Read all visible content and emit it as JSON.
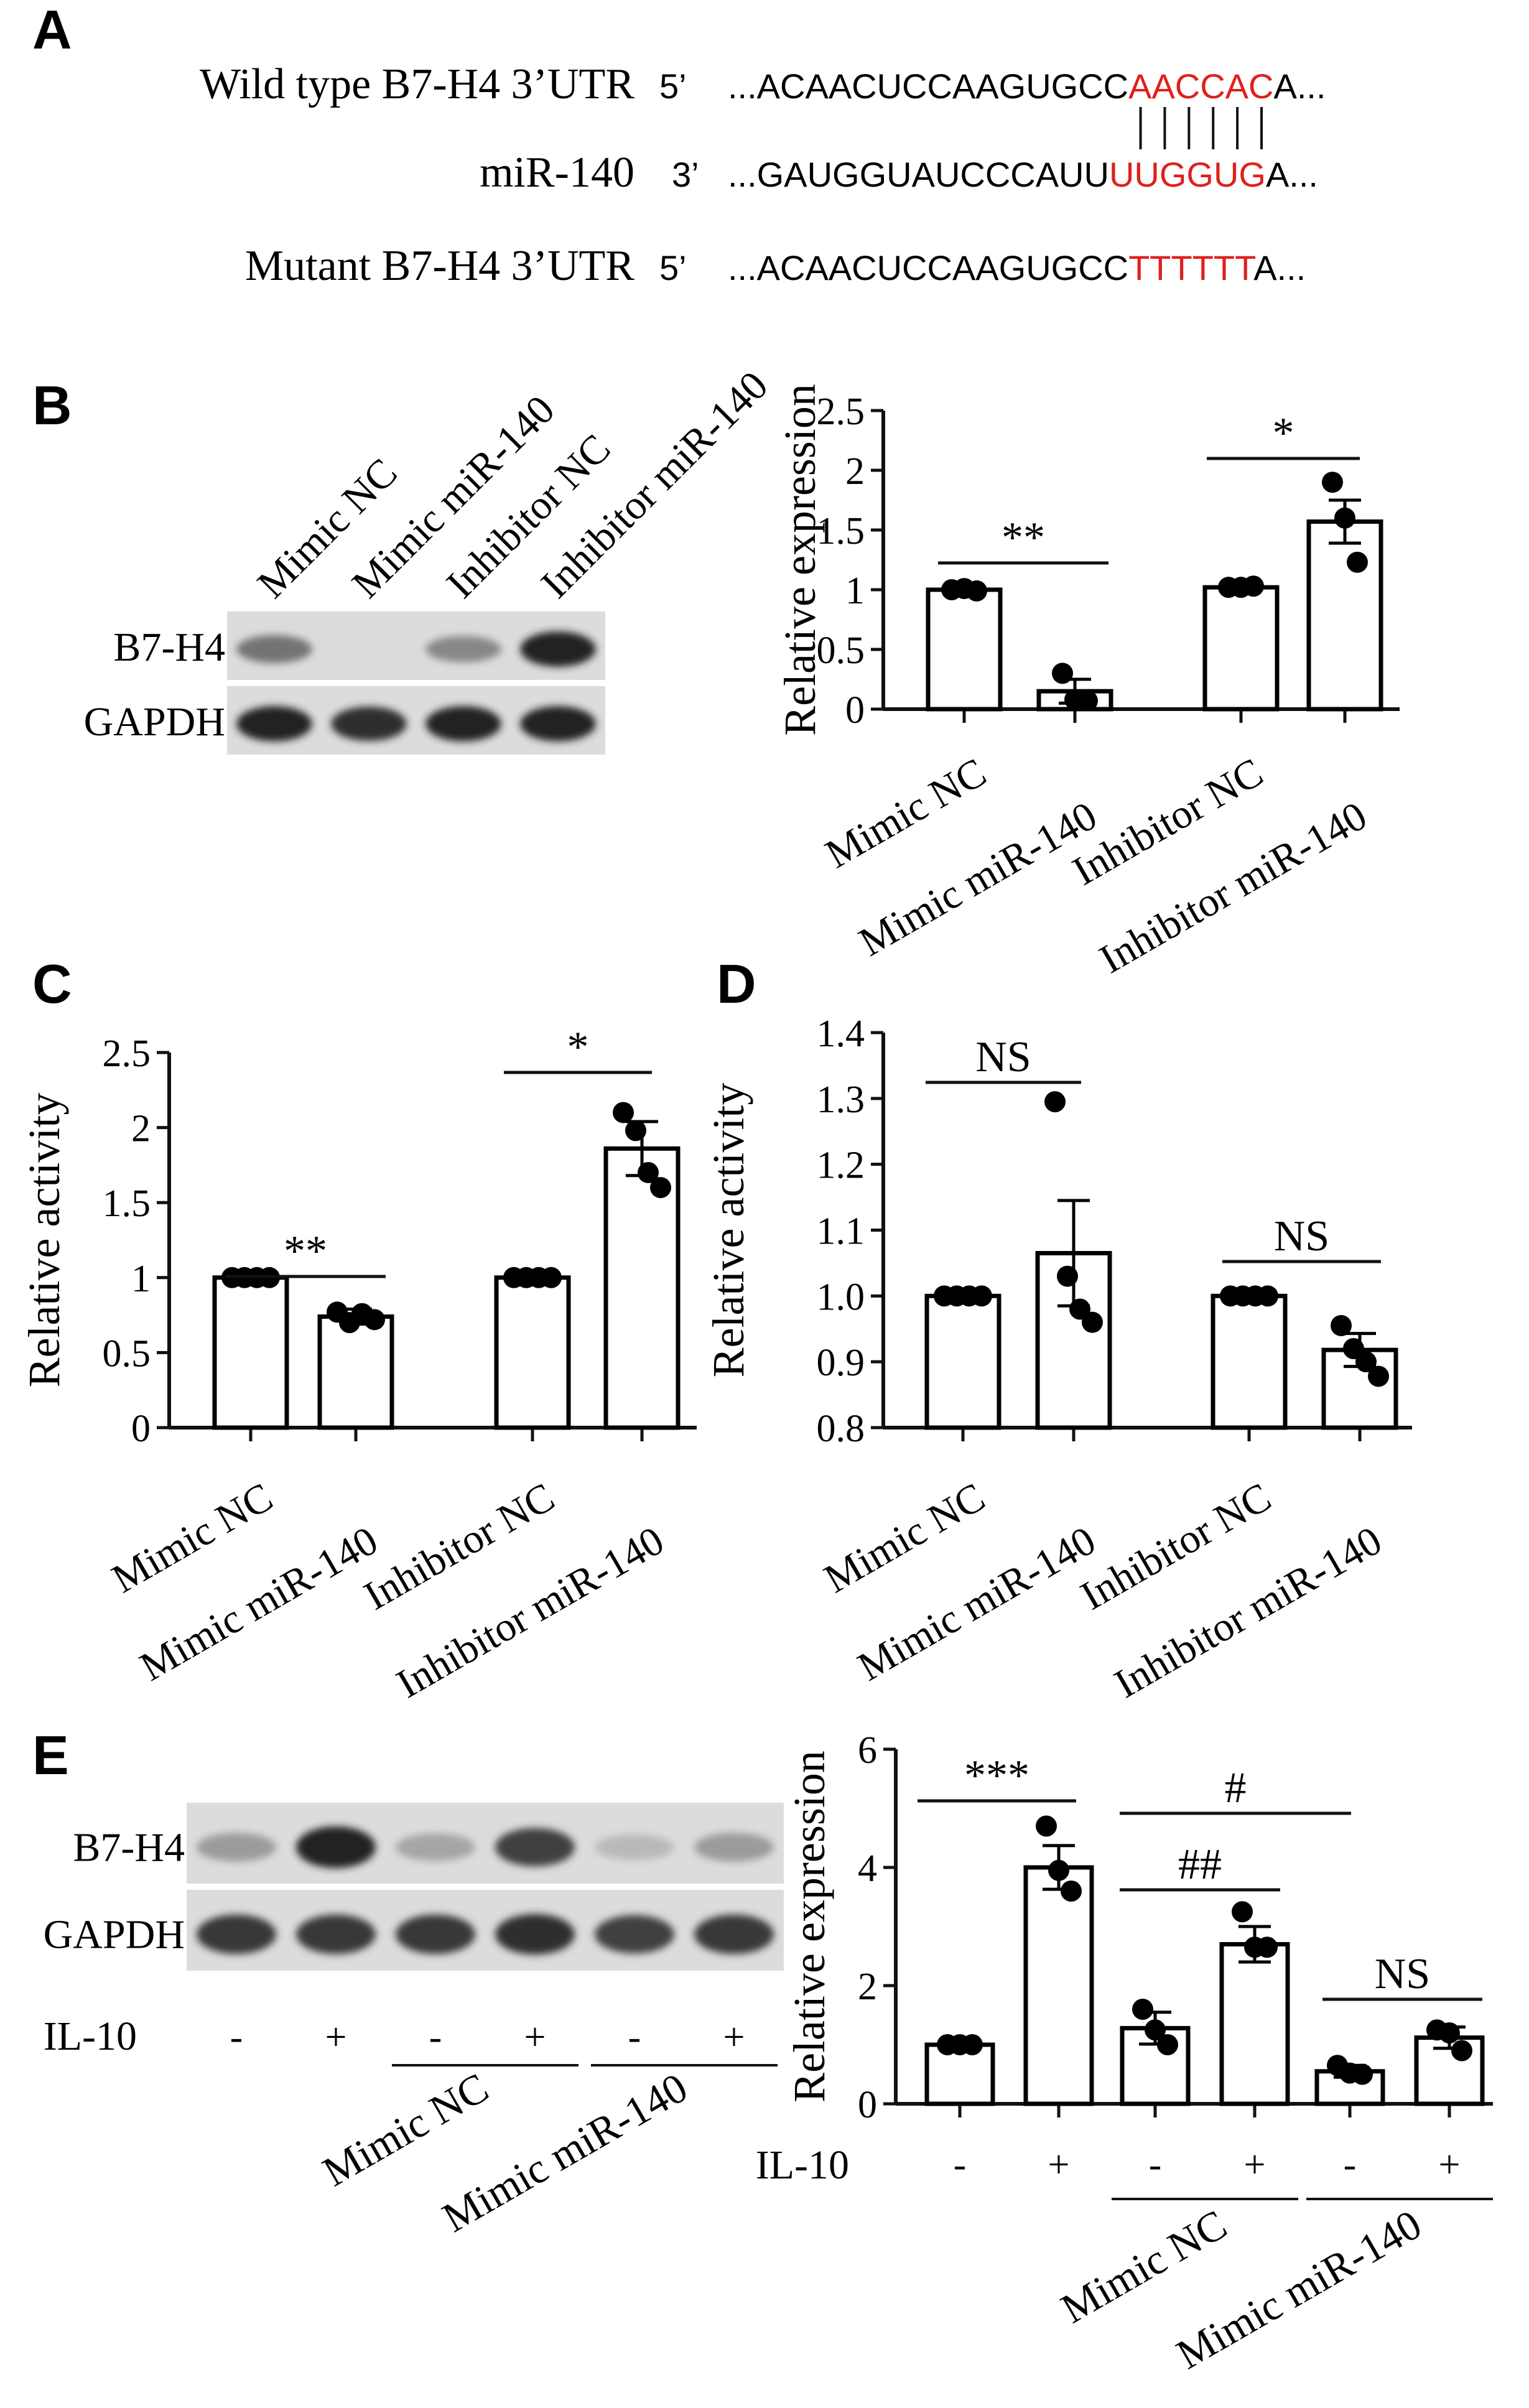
{
  "panel_labels": [
    "A",
    "B",
    "C",
    "D",
    "E"
  ],
  "sequence": {
    "rows": [
      {
        "name": "Wild type B7-H4 3’UTR",
        "end": "5’",
        "prefix": "...ACAACUCCAAGUGCC",
        "highlight": "AACCAC",
        "suffix": "A..."
      },
      {
        "name": "miR-140",
        "end": "3’",
        "prefix": "...GAUGGUAUCCCAUU",
        "highlight": "UUGGUG",
        "suffix": "A..."
      },
      {
        "name": "Mutant B7-H4 3’UTR",
        "end": "5’",
        "prefix": "...ACAACUCCAAGUGCC",
        "highlight": "TTTTTT",
        "suffix": "A..."
      }
    ],
    "highlight_color": "#e0201b"
  },
  "blot_b": {
    "lanes": [
      "Mimic NC",
      "Mimic miR-140",
      "Inhibitor NC",
      "Inhibitor miR-140"
    ],
    "rows": [
      "B7-H4",
      "GAPDH"
    ],
    "band_intensity": [
      [
        0.55,
        0.0,
        0.45,
        0.95
      ],
      [
        0.95,
        0.9,
        0.95,
        0.95
      ]
    ]
  },
  "blot_e": {
    "rows": [
      "B7-H4",
      "GAPDH"
    ],
    "treatment_label": "IL-10",
    "signs": [
      "-",
      "+",
      "-",
      "+",
      "-",
      "+"
    ],
    "groups": [
      "Mimic NC",
      "Mimic miR-140"
    ],
    "band_intensity": [
      [
        0.35,
        0.95,
        0.3,
        0.8,
        0.2,
        0.35
      ],
      [
        0.85,
        0.85,
        0.85,
        0.9,
        0.8,
        0.85
      ]
    ]
  },
  "chart_data": [
    {
      "panel": "B",
      "type": "bar",
      "categories": [
        "Mimic NC",
        "Mimic miR-140",
        "Inhibitor NC",
        "Inhibitor miR-140"
      ],
      "values": [
        1.0,
        0.15,
        1.02,
        1.57
      ],
      "errors": [
        0.02,
        0.1,
        0.02,
        0.18
      ],
      "points": [
        [
          1.0,
          1.01,
          0.99
        ],
        [
          0.3,
          0.08,
          0.07
        ],
        [
          1.02,
          1.02,
          1.03
        ],
        [
          1.9,
          1.6,
          1.23
        ]
      ],
      "ylabel": "Relative expression",
      "ylim": [
        0,
        2.5
      ],
      "yticks": [
        "0",
        "0.5",
        "1",
        "1.5",
        "2",
        "2.5"
      ],
      "ytick_values": [
        0,
        0.5,
        1,
        1.5,
        2,
        2.5
      ],
      "significance": [
        {
          "groups": [
            0,
            1
          ],
          "label": "**"
        },
        {
          "groups": [
            2,
            3
          ],
          "label": "*"
        }
      ]
    },
    {
      "panel": "C",
      "type": "bar",
      "categories": [
        "Mimic NC",
        "Mimic miR-140",
        "Inhibitor NC",
        "Inhibitor miR-140"
      ],
      "values": [
        1.0,
        0.74,
        1.0,
        1.86
      ],
      "errors": [
        0.0,
        0.05,
        0.0,
        0.18
      ],
      "points": [
        [
          1.0,
          1.0,
          1.0,
          1.0
        ],
        [
          0.77,
          0.7,
          0.76,
          0.72
        ],
        [
          1.0,
          1.0,
          1.0,
          1.0
        ],
        [
          2.1,
          1.98,
          1.7,
          1.6
        ]
      ],
      "ylabel": "Relative activity",
      "ylim": [
        0,
        2.5
      ],
      "yticks": [
        "0",
        "0.5",
        "1",
        "1.5",
        "2",
        "2.5"
      ],
      "ytick_values": [
        0,
        0.5,
        1,
        1.5,
        2,
        2.5
      ],
      "significance": [
        {
          "groups": [
            0,
            1
          ],
          "label": "**"
        },
        {
          "groups": [
            2,
            3
          ],
          "label": "*"
        }
      ]
    },
    {
      "panel": "D",
      "type": "bar",
      "categories": [
        "Mimic NC",
        "Mimic miR-140",
        "Inhibitor NC",
        "Inhibitor miR-140"
      ],
      "values": [
        1.0,
        1.065,
        1.0,
        0.918
      ],
      "errors": [
        0.0,
        0.08,
        0.0,
        0.025
      ],
      "points": [
        [
          1.0,
          1.0,
          1.0,
          1.0
        ],
        [
          1.295,
          1.03,
          0.98,
          0.96
        ],
        [
          1.0,
          1.0,
          1.0,
          1.0
        ],
        [
          0.955,
          0.92,
          0.9,
          0.878
        ]
      ],
      "ylabel": "Relative activity",
      "ylim": [
        0.8,
        1.4
      ],
      "yticks": [
        "0.8",
        "0.9",
        "1.0",
        "1.1",
        "1.2",
        "1.3",
        "1.4"
      ],
      "ytick_values": [
        0.8,
        0.9,
        1.0,
        1.1,
        1.2,
        1.3,
        1.4
      ],
      "significance": [
        {
          "groups": [
            0,
            1
          ],
          "label": "NS"
        },
        {
          "groups": [
            2,
            3
          ],
          "label": "NS"
        }
      ]
    },
    {
      "panel": "E",
      "type": "bar",
      "categories": [
        "-",
        "+",
        "-",
        "+",
        "-",
        "+"
      ],
      "treatment_label": "IL-10",
      "groups": [
        "Mimic NC",
        "Mimic miR-140"
      ],
      "values": [
        1.0,
        4.0,
        1.28,
        2.7,
        0.55,
        1.12
      ],
      "errors": [
        0.0,
        0.37,
        0.27,
        0.3,
        0.1,
        0.18
      ],
      "points": [
        [
          1.0,
          1.0,
          1.0
        ],
        [
          4.7,
          3.95,
          3.6
        ],
        [
          1.6,
          1.25,
          1.0
        ],
        [
          3.25,
          2.65,
          2.65
        ],
        [
          0.65,
          0.52,
          0.5
        ],
        [
          1.25,
          1.2,
          0.9
        ]
      ],
      "ylabel": "Relative expression",
      "ylim": [
        0,
        6
      ],
      "yticks": [
        "0",
        "2",
        "4",
        "6"
      ],
      "ytick_values": [
        0,
        2,
        4,
        6
      ],
      "significance": [
        {
          "groups": [
            0,
            1
          ],
          "label": "***"
        },
        {
          "groups": [
            2,
            3
          ],
          "label": "##"
        },
        {
          "groups": [
            2,
            4
          ],
          "label": "#"
        },
        {
          "groups": [
            4,
            5
          ],
          "label": "NS"
        }
      ]
    }
  ]
}
